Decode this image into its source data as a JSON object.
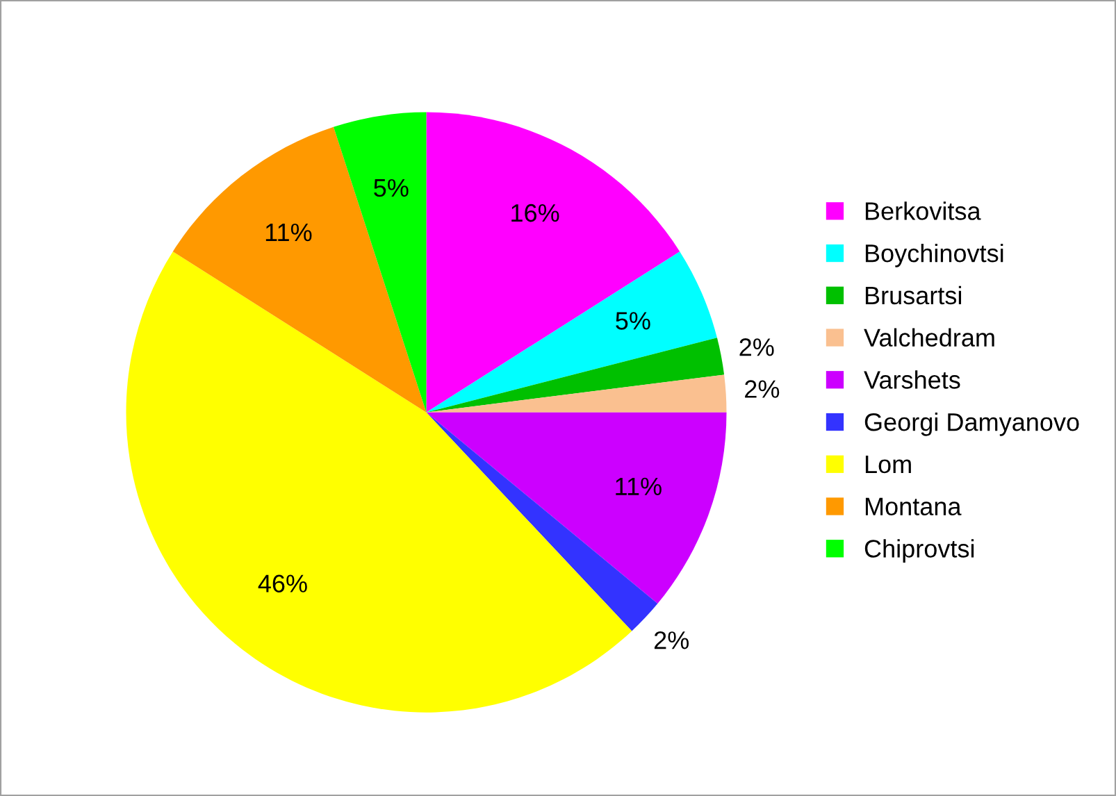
{
  "chart_data": {
    "type": "pie",
    "categories": [
      "Berkovitsa",
      "Boychinovtsi",
      "Brusartsi",
      "Valchedram",
      "Varshets",
      "Georgi Damyanovo",
      "Lom",
      "Montana",
      "Chiprovtsi"
    ],
    "values": [
      16,
      5,
      2,
      2,
      11,
      2,
      46,
      11,
      5
    ],
    "value_labels": [
      "16%",
      "5%",
      "2%",
      "2%",
      "11%",
      "2%",
      "46%",
      "11%",
      "5%"
    ],
    "colors": [
      "#ff00ff",
      "#00ffff",
      "#00c000",
      "#fac090",
      "#cc00ff",
      "#3333ff",
      "#ffff00",
      "#ff9900",
      "#00ff00"
    ],
    "legend": "right"
  }
}
